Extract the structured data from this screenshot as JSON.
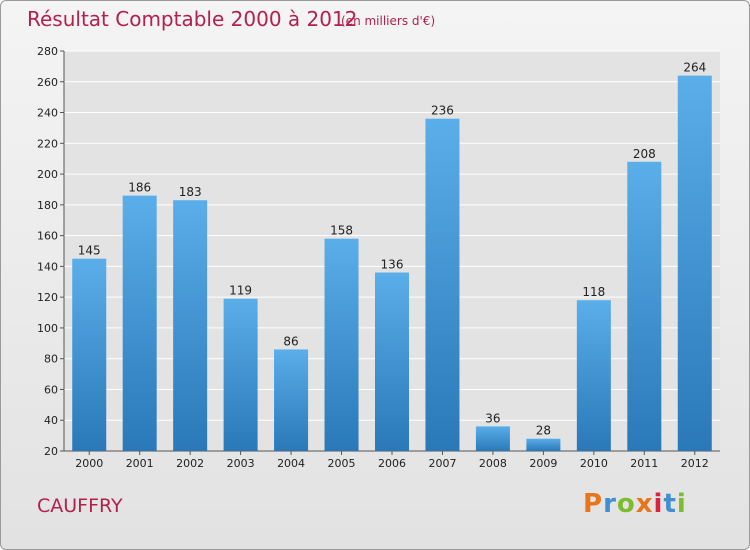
{
  "header": {
    "title": "Résultat Comptable 2000 à 2012",
    "subtitle": "(en milliers d'€)"
  },
  "footer": {
    "commune": "CAUFFRY",
    "logo_text": "Proxiti",
    "logo_colors": [
      "#e8751a",
      "#3f8fd2",
      "#7dbb2f",
      "#e8751a",
      "#d8243c",
      "#3f8fd2",
      "#7dbb2f"
    ]
  },
  "colors": {
    "bar_light": "#5aaee9",
    "bar_dark": "#2a78b8",
    "grid": "#ffffff",
    "plot_bg": "#e3e3e3",
    "text": "#222222",
    "accent": "#b4204e"
  },
  "chart_data": {
    "type": "bar",
    "categories": [
      "2000",
      "2001",
      "2002",
      "2003",
      "2004",
      "2005",
      "2006",
      "2007",
      "2008",
      "2009",
      "2010",
      "2011",
      "2012"
    ],
    "values": [
      145,
      186,
      183,
      119,
      86,
      158,
      136,
      236,
      36,
      28,
      118,
      208,
      264
    ],
    "data_labels": [
      "145",
      "186",
      "183",
      "119",
      "86",
      "158",
      "136",
      "236",
      "36",
      "28",
      "118",
      "208",
      "264"
    ],
    "yticks": [
      "20",
      "40",
      "60",
      "80",
      "100",
      "120",
      "140",
      "160",
      "180",
      "200",
      "220",
      "240",
      "260",
      "280"
    ],
    "ylim": [
      20,
      280
    ],
    "ytick_step": 20,
    "grid": true
  }
}
